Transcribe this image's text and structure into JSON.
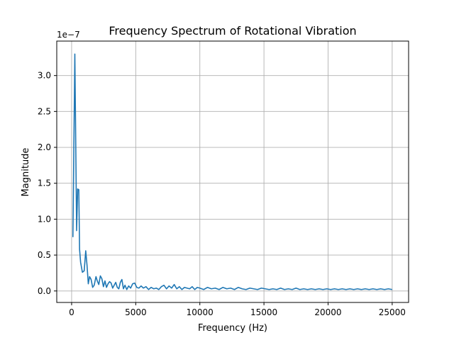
{
  "chart_data": {
    "type": "line",
    "title": "Frequency Spectrum of Rotational Vibration",
    "xlabel": "Frequency (Hz)",
    "ylabel": "Magnitude",
    "y_offset_label": "1e−7",
    "xlim": [
      -1160,
      26280
    ],
    "ylim": [
      -1.6e-08,
      3.48e-07
    ],
    "x_ticks": [
      0,
      5000,
      10000,
      15000,
      20000,
      25000
    ],
    "x_tick_labels": [
      "0",
      "5000",
      "10000",
      "15000",
      "20000",
      "25000"
    ],
    "y_ticks": [
      0,
      5e-08,
      1e-07,
      1.5e-07,
      2e-07,
      2.5e-07,
      3e-07
    ],
    "y_tick_labels": [
      "0.0",
      "0.5",
      "1.0",
      "1.5",
      "2.0",
      "2.5",
      "3.0"
    ],
    "grid": true,
    "line_color": "#1f77b4",
    "series": [
      {
        "x": [
          100,
          250,
          390,
          470,
          560,
          620,
          700,
          840,
          980,
          1100,
          1200,
          1300,
          1400,
          1520,
          1640,
          1760,
          1900,
          2000,
          2120,
          2240,
          2360,
          2480,
          2600,
          2720,
          2840,
          2960,
          3080,
          3200,
          3320,
          3440,
          3560,
          3680,
          3800,
          3920,
          4040,
          4160,
          4300,
          4450,
          4600,
          4760,
          4920,
          5080,
          5250,
          5420,
          5600,
          5800,
          6000,
          6200,
          6400,
          6600,
          6800,
          7000,
          7200,
          7400,
          7600,
          7800,
          8000,
          8200,
          8400,
          8600,
          8800,
          9000,
          9200,
          9400,
          9600,
          9800,
          10000,
          10300,
          10600,
          10900,
          11200,
          11500,
          11800,
          12100,
          12400,
          12700,
          13000,
          13300,
          13600,
          13900,
          14200,
          14500,
          14800,
          15100,
          15400,
          15700,
          16000,
          16300,
          16600,
          16900,
          17200,
          17500,
          17800,
          18100,
          18400,
          18700,
          19000,
          19300,
          19600,
          19900,
          20200,
          20500,
          20800,
          21100,
          21400,
          21700,
          22000,
          22300,
          22600,
          22900,
          23200,
          23500,
          23800,
          24100,
          24400,
          24700,
          25000
        ],
        "y": [
          7.5e-08,
          3.3e-07,
          8.4e-08,
          1.42e-07,
          1.41e-07,
          5.8e-08,
          4e-08,
          2.6e-08,
          2.8e-08,
          5.6e-08,
          3.6e-08,
          1e-08,
          2e-08,
          1.6e-08,
          5e-09,
          8e-09,
          2e-08,
          1.4e-08,
          9e-09,
          2.1e-08,
          1.7e-08,
          6e-09,
          1.4e-08,
          5e-09,
          1e-08,
          1.3e-08,
          1.1e-08,
          4e-09,
          8e-09,
          1.2e-08,
          5e-09,
          3e-09,
          1.2e-08,
          1.6e-08,
          3e-09,
          8e-09,
          2e-09,
          7e-09,
          4e-09,
          1e-08,
          1.1e-08,
          5e-09,
          4e-09,
          7e-09,
          4e-09,
          6e-09,
          2e-09,
          5e-09,
          3e-09,
          4e-09,
          2e-09,
          6e-09,
          8e-09,
          3e-09,
          7e-09,
          4e-09,
          9e-09,
          3e-09,
          6e-09,
          2e-09,
          5e-09,
          4e-09,
          3e-09,
          6e-09,
          2e-09,
          5e-09,
          4e-09,
          2e-09,
          5e-09,
          3e-09,
          4e-09,
          2e-09,
          5e-09,
          3e-09,
          4e-09,
          2e-09,
          5e-09,
          3e-09,
          2e-09,
          4e-09,
          3e-09,
          2e-09,
          4e-09,
          3e-09,
          2e-09,
          3e-09,
          2e-09,
          4e-09,
          2e-09,
          3e-09,
          2e-09,
          4e-09,
          2e-09,
          3e-09,
          2e-09,
          3e-09,
          2e-09,
          3e-09,
          2e-09,
          3e-09,
          2e-09,
          3e-09,
          2e-09,
          3e-09,
          2e-09,
          3e-09,
          2e-09,
          3e-09,
          2e-09,
          3e-09,
          2e-09,
          3e-09,
          2e-09,
          3e-09,
          2e-09,
          3e-09,
          2e-09
        ]
      }
    ]
  }
}
